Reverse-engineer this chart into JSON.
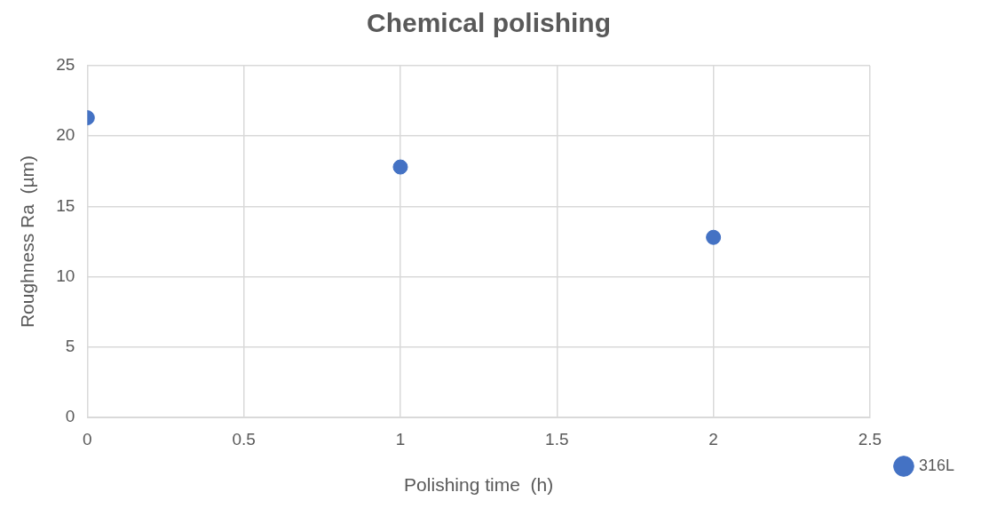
{
  "chart_data": {
    "type": "scatter",
    "title": "Chemical polishing",
    "xlabel": "Polishing time  (h)",
    "ylabel": "Roughness Ra  (µm)",
    "series": [
      {
        "name": "316L",
        "color": "#4472c4",
        "x": [
          0,
          1,
          2
        ],
        "values": [
          21.3,
          17.8,
          12.8
        ]
      }
    ],
    "xlim": [
      0,
      2.5
    ],
    "xticks": [
      0,
      0.5,
      1,
      1.5,
      2,
      2.5
    ],
    "ylim": [
      0,
      25
    ],
    "yticks": [
      0,
      5,
      10,
      15,
      20,
      25
    ],
    "grid": true,
    "legend": "right",
    "marker": "circle"
  }
}
